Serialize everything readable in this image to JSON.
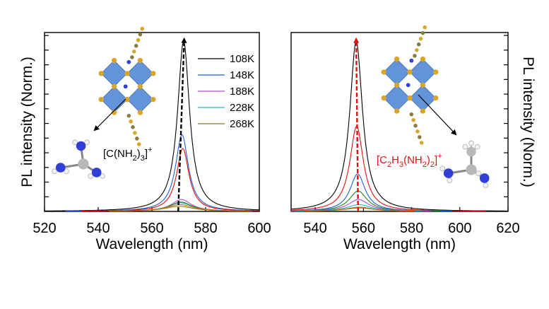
{
  "chart_data": [
    {
      "type": "line",
      "xlabel": "Wavelength (nm)",
      "ylabel": "PL intensity (Norm.)",
      "xlim": [
        520,
        600
      ],
      "xticks": [
        520,
        540,
        560,
        580,
        600
      ],
      "ylim": [
        0,
        1.05
      ],
      "ylabel_side": "left",
      "annotation": "[C(NH2)3]+",
      "annotation_color": "#000000",
      "legend_placement": "top-right",
      "series": [
        {
          "name": "108K",
          "color": "#000000",
          "peak": 571.8,
          "amplitude": 1.0,
          "width": 2.7
        },
        {
          "name": "148K",
          "color": "#1f5fd6",
          "peak": 571.2,
          "amplitude": 0.45,
          "width": 2.9
        },
        {
          "name": "188K",
          "color": "#b04cc8",
          "peak": 571.0,
          "amplitude": 0.07,
          "width": 4.5
        },
        {
          "name": "228K",
          "color": "#20b8c8",
          "peak": 570.6,
          "amplitude": 0.05,
          "width": 5.5
        },
        {
          "name": "268K",
          "color": "#8a7a10",
          "peak": 570.2,
          "amplitude": 0.03,
          "width": 6.5
        },
        {
          "name": "",
          "color": "#e01010",
          "peak": 571.5,
          "amplitude": 0.37,
          "width": 2.8
        },
        {
          "name": "",
          "color": "#1f8a1f",
          "peak": 570.8,
          "amplitude": 0.055,
          "width": 5.0
        },
        {
          "name": "",
          "color": "#d06a10",
          "peak": 570.5,
          "amplitude": 0.04,
          "width": 6.0
        }
      ],
      "trend_arrow": {
        "color": "#000000",
        "from": [
          569.8,
          0
        ],
        "to": [
          572,
          1.03
        ]
      }
    },
    {
      "type": "line",
      "xlabel": "Wavelength (nm)",
      "ylabel": "PL intensity (Norm.)",
      "xlim": [
        530,
        620
      ],
      "xticks": [
        540,
        560,
        580,
        600,
        620
      ],
      "ylim": [
        0,
        1.05
      ],
      "ylabel_side": "right",
      "annotation": "[C2H3(NH2)2]+",
      "annotation_color": "#e01010",
      "series": [
        {
          "name": "",
          "color": "#000000",
          "peak": 557.0,
          "amplitude": 1.0,
          "width": 3.2
        },
        {
          "name": "",
          "color": "#e01010",
          "peak": 557.2,
          "amplitude": 0.5,
          "width": 3.4
        },
        {
          "name": "",
          "color": "#1f5fd6",
          "peak": 557.6,
          "amplitude": 0.22,
          "width": 3.8
        },
        {
          "name": "",
          "color": "#1f8a1f",
          "peak": 557.8,
          "amplitude": 0.12,
          "width": 4.5
        },
        {
          "name": "",
          "color": "#b04cc8",
          "peak": 558.0,
          "amplitude": 0.07,
          "width": 5.2
        },
        {
          "name": "",
          "color": "#20b8c8",
          "peak": 558.2,
          "amplitude": 0.04,
          "width": 6.0
        },
        {
          "name": "",
          "color": "#8a7a10",
          "peak": 558.3,
          "amplitude": 0.025,
          "width": 6.8
        },
        {
          "name": "",
          "color": "#d06a10",
          "peak": 558.4,
          "amplitude": 0.02,
          "width": 7.5
        }
      ],
      "trend_arrow": {
        "color": "#e01010",
        "from": [
          557.8,
          0
        ],
        "to": [
          557,
          1.03
        ]
      }
    }
  ],
  "structure_colors": {
    "octahedron": "#5b8fd8",
    "octahedron_edge": "#3a68a8",
    "halide": "#d9a526",
    "nitrogen": "#2f3fd8",
    "carbon": "#b8b8b8",
    "hydrogen": "#f2f2f2"
  }
}
